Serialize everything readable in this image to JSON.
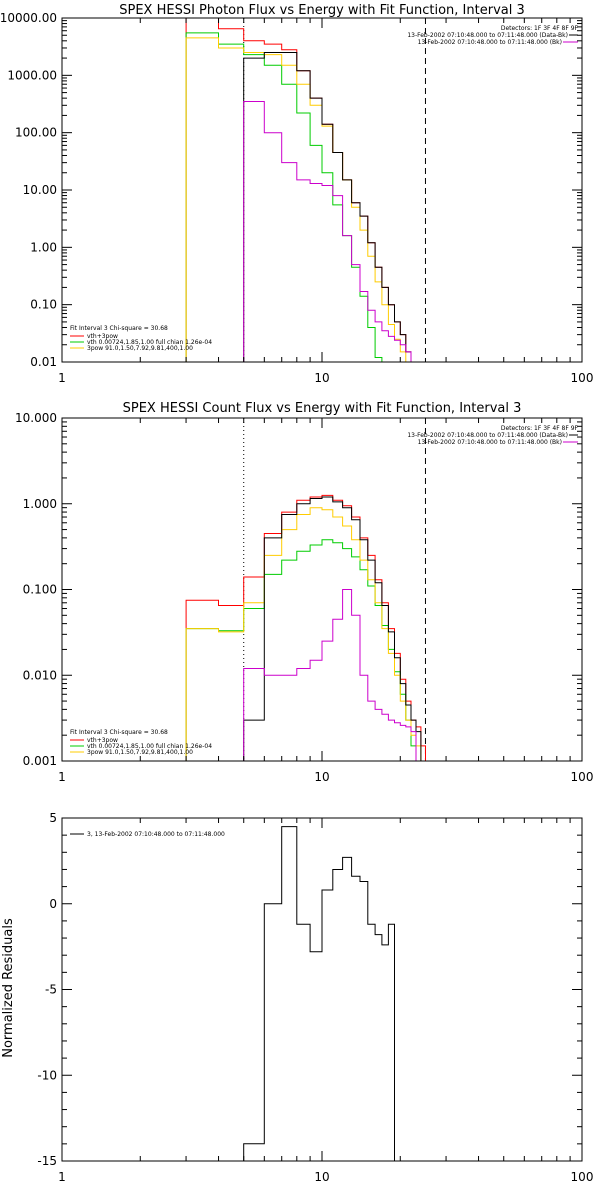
{
  "colors": {
    "vth_plus_3pow": "#ff0000",
    "vth": "#00cc00",
    "3pow": "#ffcc00",
    "background": "#cc00cc",
    "data": "#000000",
    "fit_range_lines": "#000000"
  },
  "chart_data": [
    {
      "type": "line",
      "title": "SPEX HESSI Photon Flux vs Energy with Fit Function, Interval 3",
      "xlabel": "",
      "ylabel": "",
      "xscale": "log",
      "yscale": "log",
      "xlim": [
        1,
        100
      ],
      "ylim": [
        0.01,
        10000
      ],
      "x_tick_labels": [
        "1",
        "10",
        "100"
      ],
      "y_tick_labels": [
        "0.01",
        "0.10",
        "1.00",
        "10.00",
        "100.00",
        "1000.00",
        "10000.00"
      ],
      "vertical_lines": [
        {
          "x": 5,
          "style": "dotted"
        },
        {
          "x": 25,
          "style": "dashed"
        }
      ],
      "info_top": {
        "detectors": "Detectors: 1F 3F 4F 8F 9F",
        "line1": "13-Feb-2002 07:10:48.000 to 07:11:48.000 (Data-Bk)",
        "line2": "13-Feb-2002 07:10:48.000 to 07:11:48.000 (Bk)"
      },
      "legend_box": {
        "header": "Fit Interval 3   Chi-square = 30.68",
        "entries": [
          "vth+3pow",
          "vth 0.00724,1.85,1.00  full chian 1.26e-04",
          "3pow 91.0,1.50,7.92,9.81,400,1.00"
        ]
      },
      "edges": [
        3,
        4,
        5,
        6,
        7,
        8,
        9,
        10,
        11,
        12,
        13,
        14,
        15,
        16,
        17,
        18,
        19,
        20,
        21,
        22,
        23,
        24,
        25,
        26,
        27,
        28
      ],
      "series": [
        {
          "name": "vth+3pow",
          "color_key": "vth_plus_3pow",
          "values": [
            10000,
            6500,
            4000,
            3500,
            2800,
            1200,
            400,
            140,
            45,
            15,
            6,
            3.5,
            1.2,
            0.45,
            0.2,
            0.1,
            0.05,
            0.03,
            0.015
          ]
        },
        {
          "name": "vth",
          "color_key": "vth",
          "values": [
            5500,
            3500,
            2300,
            1500,
            700,
            220,
            60,
            20,
            5.5,
            1.6,
            0.45,
            0.14,
            0.04,
            0.012
          ]
        },
        {
          "name": "3pow",
          "color_key": "3pow",
          "values": [
            4500,
            3000,
            2500,
            2300,
            1500,
            700,
            300,
            130,
            45,
            15,
            5,
            2,
            0.7,
            0.25,
            0.1,
            0.045,
            0.025,
            0.015,
            0.008
          ]
        },
        {
          "name": "data",
          "color_key": "data",
          "values": [
            null,
            null,
            2000,
            2500,
            2500,
            1200,
            400,
            140,
            45,
            15,
            6,
            3.5,
            1.2,
            0.45,
            0.2,
            0.1,
            0.05,
            0.03,
            0.015
          ]
        },
        {
          "name": "background",
          "color_key": "background",
          "values": [
            null,
            null,
            350,
            100,
            30,
            15,
            13,
            12,
            8,
            1.6,
            0.5,
            0.17,
            0.08,
            0.05,
            0.035,
            0.028,
            0.024,
            0.02,
            0.015
          ]
        }
      ]
    },
    {
      "type": "line",
      "title": "SPEX HESSI Count Flux vs Energy with Fit Function, Interval 3",
      "xlabel": "",
      "ylabel": "",
      "xscale": "log",
      "yscale": "log",
      "xlim": [
        1,
        100
      ],
      "ylim": [
        0.001,
        10
      ],
      "x_tick_labels": [
        "1",
        "10",
        "100"
      ],
      "y_tick_labels": [
        "0.001",
        "0.010",
        "0.100",
        "1.000",
        "10.000"
      ],
      "vertical_lines": [
        {
          "x": 5,
          "style": "dotted"
        },
        {
          "x": 25,
          "style": "dashed"
        }
      ],
      "info_top": {
        "detectors": "Detectors: 1F 3F 4F 8F 9F",
        "line1": "13-Feb-2002 07:10:48.000 to 07:11:48.000 (Data-Bk)",
        "line2": "13-Feb-2002 07:10:48.000 to 07:11:48.000 (Bk)"
      },
      "legend_box": {
        "header": "Fit Interval 3   Chi-square = 30.68",
        "entries": [
          "vth+3pow",
          "vth 0.00724,1.85,1.00  full chian 1.26e-04",
          "3pow 91.0,1.50,7.92,9.81,400,1.00"
        ]
      },
      "edges": [
        3,
        4,
        5,
        6,
        7,
        8,
        9,
        10,
        11,
        12,
        13,
        14,
        15,
        16,
        17,
        18,
        19,
        20,
        21,
        22,
        23,
        24,
        25,
        26,
        27,
        28
      ],
      "series": [
        {
          "name": "vth+3pow",
          "color_key": "vth_plus_3pow",
          "values": [
            0.075,
            0.065,
            0.14,
            0.45,
            0.8,
            1.1,
            1.2,
            1.25,
            1.1,
            0.95,
            0.7,
            0.4,
            0.25,
            0.13,
            0.07,
            0.035,
            0.018,
            0.009,
            0.005,
            0.003,
            0.0025,
            0.0015
          ]
        },
        {
          "name": "vth",
          "color_key": "vth",
          "values": [
            0.035,
            0.033,
            0.06,
            0.15,
            0.22,
            0.28,
            0.33,
            0.38,
            0.35,
            0.3,
            0.24,
            0.17,
            0.11,
            0.065,
            0.038,
            0.02,
            0.011,
            0.006,
            0.003,
            0.0015
          ]
        },
        {
          "name": "3pow",
          "color_key": "3pow",
          "values": [
            0.035,
            0.032,
            0.07,
            0.25,
            0.5,
            0.75,
            0.9,
            0.85,
            0.7,
            0.55,
            0.38,
            0.22,
            0.13,
            0.07,
            0.035,
            0.018,
            0.01,
            0.005,
            0.003,
            0.002,
            0.0015
          ]
        },
        {
          "name": "data",
          "color_key": "data",
          "values": [
            null,
            null,
            0.003,
            0.4,
            0.75,
            1.0,
            1.15,
            1.2,
            1.05,
            0.9,
            0.65,
            0.38,
            0.22,
            0.12,
            0.065,
            0.032,
            0.016,
            0.008,
            0.0045,
            0.003,
            0.0022
          ]
        },
        {
          "name": "background",
          "color_key": "background",
          "values": [
            null,
            null,
            0.012,
            0.01,
            0.01,
            0.012,
            0.015,
            0.025,
            0.045,
            0.1,
            0.05,
            0.01,
            0.005,
            0.004,
            0.0035,
            0.003,
            0.0028,
            0.0026,
            0.0025,
            0.0022
          ]
        }
      ]
    },
    {
      "type": "line",
      "title": "",
      "xlabel": "",
      "ylabel": "Normalized Residuals",
      "xscale": "log",
      "yscale": "linear",
      "xlim": [
        1,
        100
      ],
      "ylim": [
        -15,
        5
      ],
      "x_tick_labels": [
        "1",
        "10",
        "100"
      ],
      "y_tick_labels": [
        "5",
        "0",
        "-5",
        "-10",
        "-15"
      ],
      "legend_entry": "3, 13-Feb-2002 07:10:48.000 to 07:11:48.000",
      "edges": [
        5,
        6,
        7,
        8,
        9,
        10,
        11,
        12,
        13,
        14,
        15,
        16,
        17,
        18,
        19,
        20,
        21,
        22,
        23,
        24,
        25
      ],
      "series": [
        {
          "name": "3, 13-Feb-2002 07:10:48.000 to 07:11:48.000",
          "color_key": "data",
          "values": [
            -14,
            0,
            4.5,
            -1.2,
            -2.8,
            0.8,
            2.0,
            2.7,
            1.6,
            1.3,
            -1.2,
            -1.8,
            -2.4,
            -1.2
          ]
        }
      ]
    }
  ]
}
